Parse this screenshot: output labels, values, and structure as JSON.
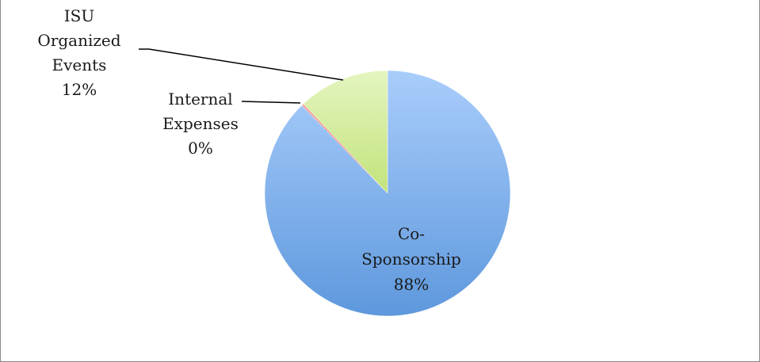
{
  "chart_data": {
    "type": "pie",
    "title": "",
    "start_angle_deg": 0,
    "direction": "clockwise",
    "slices": [
      {
        "label_lines": [
          "Co-",
          "Sponsorship"
        ],
        "percent_label": "88%",
        "value": 87.7,
        "color_light": "#a9cdfb",
        "color_dark": "#5e98dd"
      },
      {
        "label_lines": [
          "Internal",
          "Expenses"
        ],
        "percent_label": "0%",
        "value": 0.3,
        "color_light": "#f4a7a5",
        "color_dark": "#e26d6a"
      },
      {
        "label_lines": [
          "ISU",
          "Organized",
          "Events"
        ],
        "percent_label": "12%",
        "value": 12.0,
        "color_light": "#e4f5bf",
        "color_dark": "#c2e37c"
      }
    ],
    "legend": "none",
    "label_placement": [
      "inside",
      "outside-left",
      "outside-left"
    ]
  }
}
